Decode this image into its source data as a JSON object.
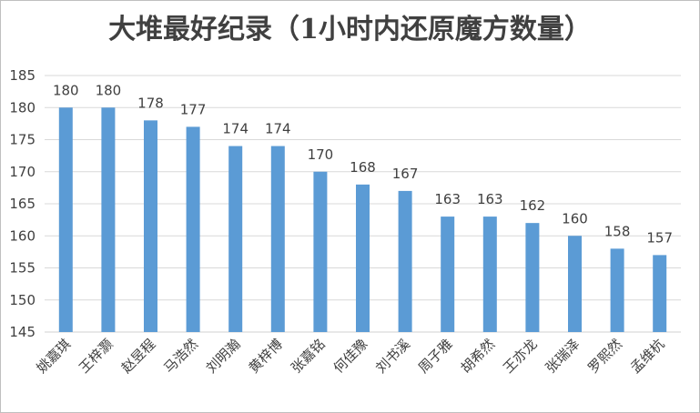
{
  "chart_data": {
    "type": "bar",
    "title": "大堆最好纪录（1小时内还原魔方数量）",
    "xlabel": "",
    "ylabel": "",
    "ylim": [
      145,
      185
    ],
    "yticks": [
      145,
      150,
      155,
      160,
      165,
      170,
      175,
      180,
      185
    ],
    "grid": true,
    "bar_color": "#5b9bd5",
    "categories": [
      "姚嘉琪",
      "王梓灏",
      "赵昱程",
      "马浩然",
      "刘明瀚",
      "黄梓博",
      "张嘉铭",
      "何佳豫",
      "刘书溪",
      "周子雅",
      "胡希然",
      "王亦龙",
      "张瑞泽",
      "罗熙然",
      "孟维杭"
    ],
    "values": [
      180,
      180,
      178,
      177,
      174,
      174,
      170,
      168,
      167,
      163,
      163,
      162,
      160,
      158,
      157
    ]
  }
}
